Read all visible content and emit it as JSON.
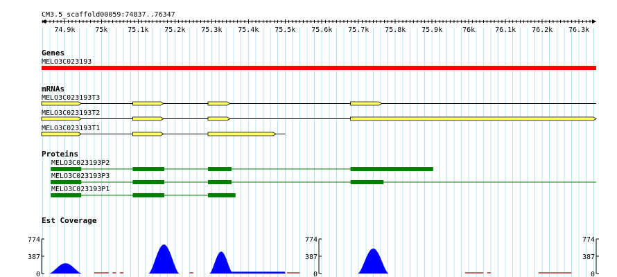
{
  "region": {
    "label": "CM3.5_scaffold00059:74837..76347",
    "start": 74837,
    "end": 76347
  },
  "ruler": {
    "ticks": [
      {
        "pos": 74900,
        "label": "74.9k"
      },
      {
        "pos": 75000,
        "label": "75k"
      },
      {
        "pos": 75100,
        "label": "75.1k"
      },
      {
        "pos": 75200,
        "label": "75.2k"
      },
      {
        "pos": 75300,
        "label": "75.3k"
      },
      {
        "pos": 75400,
        "label": "75.4k"
      },
      {
        "pos": 75500,
        "label": "75.5k"
      },
      {
        "pos": 75600,
        "label": "75.6k"
      },
      {
        "pos": 75700,
        "label": "75.7k"
      },
      {
        "pos": 75800,
        "label": "75.8k"
      },
      {
        "pos": 75900,
        "label": "75.9k"
      },
      {
        "pos": 76000,
        "label": "76k"
      },
      {
        "pos": 76100,
        "label": "76.1k"
      },
      {
        "pos": 76200,
        "label": "76.2k"
      },
      {
        "pos": 76300,
        "label": "76.3k"
      }
    ]
  },
  "colors": {
    "gene": "#ff0000",
    "mrna_exon": "#ffff66",
    "protein": "#007f00",
    "coverage": "#0000ff",
    "coverage_gap": "#cc6666",
    "grid": "#b4e6f0"
  },
  "tracks": {
    "genes": {
      "title": "Genes",
      "features": [
        {
          "name": "MELO3C023193",
          "start": 74837,
          "end": 76347
        }
      ]
    },
    "mrnas": {
      "title": "mRNAs",
      "features": [
        {
          "name": "MELO3C023193T3",
          "start": 74837,
          "end": 76347,
          "exons": [
            [
              74837,
              74945
            ],
            [
              75085,
              75169
            ],
            [
              75290,
              75350
            ],
            [
              75678,
              75763
            ]
          ]
        },
        {
          "name": "MELO3C023193T2",
          "start": 74837,
          "end": 76347,
          "exons": [
            [
              74837,
              74945
            ],
            [
              75085,
              75169
            ],
            [
              75290,
              75350
            ],
            [
              75678,
              76347
            ]
          ]
        },
        {
          "name": "MELO3C023193T1",
          "start": 74837,
          "end": 75500,
          "exons": [
            [
              74837,
              74945
            ],
            [
              75085,
              75169
            ],
            [
              75290,
              75475
            ]
          ]
        }
      ]
    },
    "proteins": {
      "title": "Proteins",
      "features": [
        {
          "name": "MELO3C023193P2",
          "start": 74862,
          "end": 75903,
          "blocks": [
            [
              74862,
              74945
            ],
            [
              75085,
              75171
            ],
            [
              75290,
              75354
            ],
            [
              75678,
              75903
            ]
          ]
        },
        {
          "name": "MELO3C023193P3",
          "start": 74862,
          "end": 76347,
          "blocks": [
            [
              74862,
              74945
            ],
            [
              75085,
              75171
            ],
            [
              75290,
              75354
            ],
            [
              75678,
              75768
            ]
          ]
        },
        {
          "name": "MELO3C023193P1",
          "start": 74862,
          "end": 75365,
          "blocks": [
            [
              74862,
              74945
            ],
            [
              75085,
              75171
            ],
            [
              75290,
              75365
            ]
          ]
        }
      ]
    },
    "est_coverage": {
      "title": "Est Coverage",
      "y_ticks": [
        {
          "value": 0,
          "label": "0"
        },
        {
          "value": 387,
          "label": "387"
        },
        {
          "value": 774,
          "label": "774"
        }
      ],
      "ymax": 774,
      "peaks": [
        {
          "center": 74902,
          "halfwidth": 45,
          "height": 230
        },
        {
          "center": 75170,
          "halfwidth": 42,
          "height": 650
        },
        {
          "center": 75326,
          "halfwidth": 32,
          "height": 490
        },
        {
          "center": 75740,
          "halfwidth": 42,
          "height": 560
        }
      ],
      "low_regions": [
        {
          "start": 75350,
          "end": 75500,
          "level": 40
        }
      ],
      "gaps": [
        {
          "start": 74980,
          "end": 75020
        },
        {
          "start": 75030,
          "end": 75040
        },
        {
          "start": 75050,
          "end": 75060
        },
        {
          "start": 75240,
          "end": 75250
        },
        {
          "start": 75505,
          "end": 75540
        },
        {
          "start": 75990,
          "end": 76040
        },
        {
          "start": 76050,
          "end": 76060
        },
        {
          "start": 76190,
          "end": 76280
        }
      ]
    }
  }
}
